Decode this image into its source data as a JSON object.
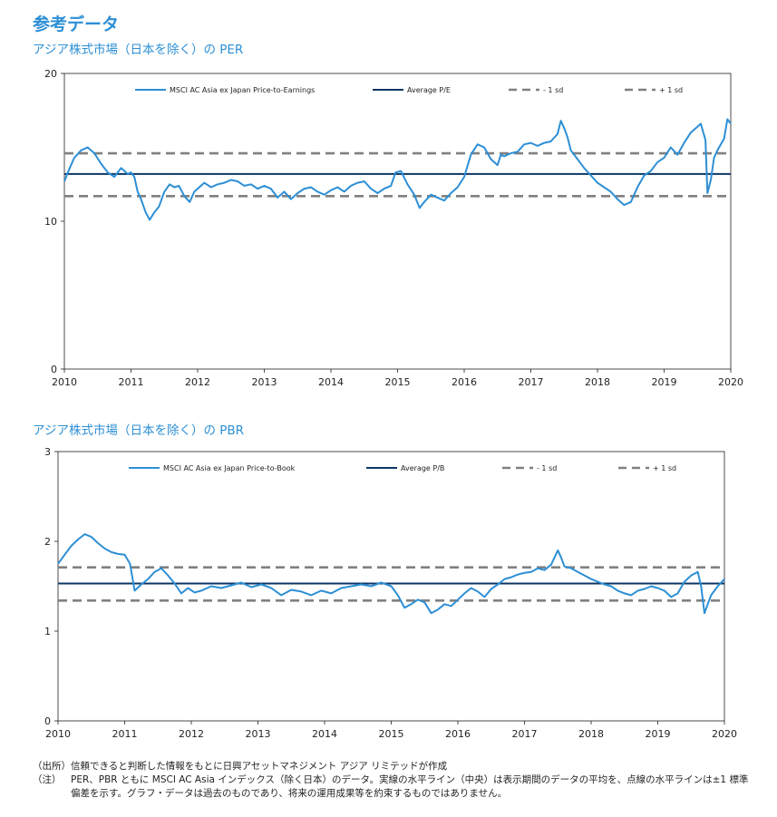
{
  "page_title": "参考データ",
  "chart_data": [
    {
      "type": "line",
      "title": "アジア株式市場（日本を除く）の PER",
      "xlabel": "",
      "ylabel": "",
      "x_ticks": [
        "2010",
        "2011",
        "2012",
        "2013",
        "2014",
        "2015",
        "2016",
        "2017",
        "2018",
        "2019",
        "2020"
      ],
      "xlim": [
        2010,
        2020
      ],
      "y_ticks": [
        "0",
        "10",
        "20"
      ],
      "ylim": [
        0,
        20
      ],
      "grid": false,
      "legend_position": "top",
      "series": [
        {
          "name": "MSCI AC Asia ex Japan Price-to-Earnings",
          "color": "#2d8fd5",
          "style": "solid",
          "x": [
            2010.0,
            2010.08,
            2010.15,
            2010.25,
            2010.35,
            2010.45,
            2010.55,
            2010.65,
            2010.75,
            2010.85,
            2010.95,
            2011.0,
            2011.05,
            2011.1,
            2011.15,
            2011.22,
            2011.28,
            2011.35,
            2011.42,
            2011.5,
            2011.58,
            2011.65,
            2011.72,
            2011.8,
            2011.88,
            2011.95,
            2012.0,
            2012.1,
            2012.2,
            2012.3,
            2012.4,
            2012.5,
            2012.6,
            2012.7,
            2012.8,
            2012.9,
            2013.0,
            2013.1,
            2013.2,
            2013.3,
            2013.4,
            2013.5,
            2013.6,
            2013.7,
            2013.8,
            2013.9,
            2014.0,
            2014.1,
            2014.2,
            2014.3,
            2014.4,
            2014.5,
            2014.6,
            2014.7,
            2014.8,
            2014.9,
            2014.97,
            2015.05,
            2015.15,
            2015.25,
            2015.33,
            2015.4,
            2015.5,
            2015.6,
            2015.7,
            2015.8,
            2015.9,
            2016.0,
            2016.1,
            2016.2,
            2016.3,
            2016.4,
            2016.5,
            2016.55,
            2016.6,
            2016.7,
            2016.8,
            2016.9,
            2017.0,
            2017.1,
            2017.2,
            2017.3,
            2017.4,
            2017.45,
            2017.5,
            2017.55,
            2017.6,
            2017.7,
            2017.8,
            2017.9,
            2018.0,
            2018.1,
            2018.2,
            2018.3,
            2018.4,
            2018.5,
            2018.6,
            2018.7,
            2018.8,
            2018.9,
            2019.0,
            2019.1,
            2019.2,
            2019.3,
            2019.4,
            2019.5,
            2019.55,
            2019.62,
            2019.65,
            2019.7,
            2019.75,
            2019.8,
            2019.85,
            2019.9,
            2019.95,
            2020.0
          ],
          "y": [
            12.7,
            13.6,
            14.3,
            14.8,
            15.0,
            14.6,
            13.9,
            13.3,
            13.0,
            13.6,
            13.2,
            13.3,
            13.0,
            12.0,
            11.5,
            10.6,
            10.1,
            10.6,
            11.0,
            12.0,
            12.5,
            12.3,
            12.4,
            11.7,
            11.3,
            12.0,
            12.2,
            12.6,
            12.3,
            12.5,
            12.6,
            12.8,
            12.7,
            12.4,
            12.5,
            12.2,
            12.4,
            12.2,
            11.6,
            12.0,
            11.5,
            11.9,
            12.2,
            12.3,
            12.0,
            11.8,
            12.1,
            12.3,
            12.0,
            12.4,
            12.6,
            12.7,
            12.2,
            11.9,
            12.2,
            12.4,
            13.3,
            13.4,
            12.5,
            11.8,
            10.9,
            11.3,
            11.8,
            11.6,
            11.4,
            11.9,
            12.3,
            13.0,
            14.5,
            15.2,
            15.0,
            14.2,
            13.8,
            14.5,
            14.4,
            14.6,
            14.7,
            15.2,
            15.3,
            15.1,
            15.3,
            15.4,
            15.9,
            16.8,
            16.3,
            15.7,
            14.8,
            14.2,
            13.6,
            13.1,
            12.6,
            12.3,
            12.0,
            11.5,
            11.1,
            11.3,
            12.3,
            13.1,
            13.4,
            14.0,
            14.3,
            15.0,
            14.5,
            15.3,
            16.0,
            16.4,
            16.6,
            15.5,
            11.9,
            12.8,
            14.3,
            14.8,
            15.2,
            15.6,
            16.9,
            16.6
          ]
        },
        {
          "name": "Average P/E",
          "color": "#0d3563",
          "style": "solid",
          "value": 13.2
        },
        {
          "name": "- 1 sd",
          "color": "#808080",
          "style": "dashed",
          "value": 11.7
        },
        {
          "name": "+ 1 sd",
          "color": "#808080",
          "style": "dashed",
          "value": 14.6
        }
      ]
    },
    {
      "type": "line",
      "title": "アジア株式市場（日本を除く）の PBR",
      "xlabel": "",
      "ylabel": "",
      "x_ticks": [
        "2010",
        "2011",
        "2012",
        "2013",
        "2014",
        "2015",
        "2016",
        "2017",
        "2018",
        "2019",
        "2020"
      ],
      "xlim": [
        2010,
        2020
      ],
      "y_ticks": [
        "0",
        "1",
        "2",
        "3"
      ],
      "ylim": [
        0,
        3
      ],
      "grid": false,
      "legend_position": "top",
      "series": [
        {
          "name": "MSCI AC Asia ex Japan Price-to-Book",
          "color": "#2d8fd5",
          "style": "solid",
          "x": [
            2010.0,
            2010.1,
            2010.2,
            2010.3,
            2010.4,
            2010.5,
            2010.6,
            2010.7,
            2010.8,
            2010.9,
            2011.0,
            2011.08,
            2011.15,
            2011.25,
            2011.35,
            2011.45,
            2011.55,
            2011.65,
            2011.75,
            2011.85,
            2011.95,
            2012.05,
            2012.15,
            2012.3,
            2012.45,
            2012.6,
            2012.75,
            2012.9,
            2013.05,
            2013.2,
            2013.35,
            2013.5,
            2013.65,
            2013.8,
            2013.95,
            2014.1,
            2014.25,
            2014.4,
            2014.55,
            2014.7,
            2014.85,
            2015.0,
            2015.1,
            2015.2,
            2015.3,
            2015.4,
            2015.5,
            2015.6,
            2015.7,
            2015.8,
            2015.9,
            2016.0,
            2016.1,
            2016.2,
            2016.3,
            2016.4,
            2016.5,
            2016.6,
            2016.7,
            2016.8,
            2016.9,
            2017.0,
            2017.1,
            2017.2,
            2017.3,
            2017.4,
            2017.5,
            2017.55,
            2017.6,
            2017.7,
            2017.8,
            2017.9,
            2018.0,
            2018.1,
            2018.2,
            2018.3,
            2018.4,
            2018.5,
            2018.6,
            2018.7,
            2018.8,
            2018.9,
            2019.0,
            2019.1,
            2019.2,
            2019.3,
            2019.4,
            2019.5,
            2019.6,
            2019.65,
            2019.7,
            2019.75,
            2019.8,
            2019.9,
            2020.0
          ],
          "y": [
            1.75,
            1.85,
            1.95,
            2.02,
            2.08,
            2.05,
            1.98,
            1.92,
            1.88,
            1.86,
            1.85,
            1.75,
            1.45,
            1.52,
            1.58,
            1.66,
            1.7,
            1.62,
            1.53,
            1.42,
            1.48,
            1.43,
            1.45,
            1.5,
            1.48,
            1.51,
            1.54,
            1.49,
            1.52,
            1.48,
            1.4,
            1.46,
            1.44,
            1.4,
            1.45,
            1.42,
            1.48,
            1.5,
            1.52,
            1.5,
            1.54,
            1.5,
            1.4,
            1.26,
            1.3,
            1.35,
            1.32,
            1.2,
            1.24,
            1.3,
            1.28,
            1.35,
            1.42,
            1.48,
            1.44,
            1.38,
            1.47,
            1.52,
            1.58,
            1.6,
            1.63,
            1.65,
            1.66,
            1.7,
            1.68,
            1.74,
            1.9,
            1.82,
            1.72,
            1.7,
            1.66,
            1.62,
            1.58,
            1.55,
            1.52,
            1.5,
            1.45,
            1.42,
            1.4,
            1.45,
            1.47,
            1.5,
            1.48,
            1.45,
            1.38,
            1.42,
            1.55,
            1.62,
            1.66,
            1.5,
            1.2,
            1.3,
            1.4,
            1.5,
            1.58
          ]
        },
        {
          "name": "Average P/B",
          "color": "#0d3563",
          "style": "solid",
          "value": 1.53
        },
        {
          "name": "- 1 sd",
          "color": "#808080",
          "style": "dashed",
          "value": 1.34
        },
        {
          "name": "+ 1 sd",
          "color": "#808080",
          "style": "dashed",
          "value": 1.71
        }
      ]
    }
  ],
  "notes": {
    "source_label": "（出所）",
    "source_text": "信頼できると判断した情報をもとに日興アセットマネジメント アジア リミテッドが作成",
    "note_label": "（注）",
    "note_text_1": "PER、PBR ともに MSCI AC Asia インデックス（除く日本）のデータ。実線の水平ライン（中央）は表示期間のデータの平均を、点線の水平ラインは±1 標準",
    "note_text_2": "偏差を示す。グラフ・データは過去のものであり、将来の運用成果等を約束するものではありません。"
  }
}
